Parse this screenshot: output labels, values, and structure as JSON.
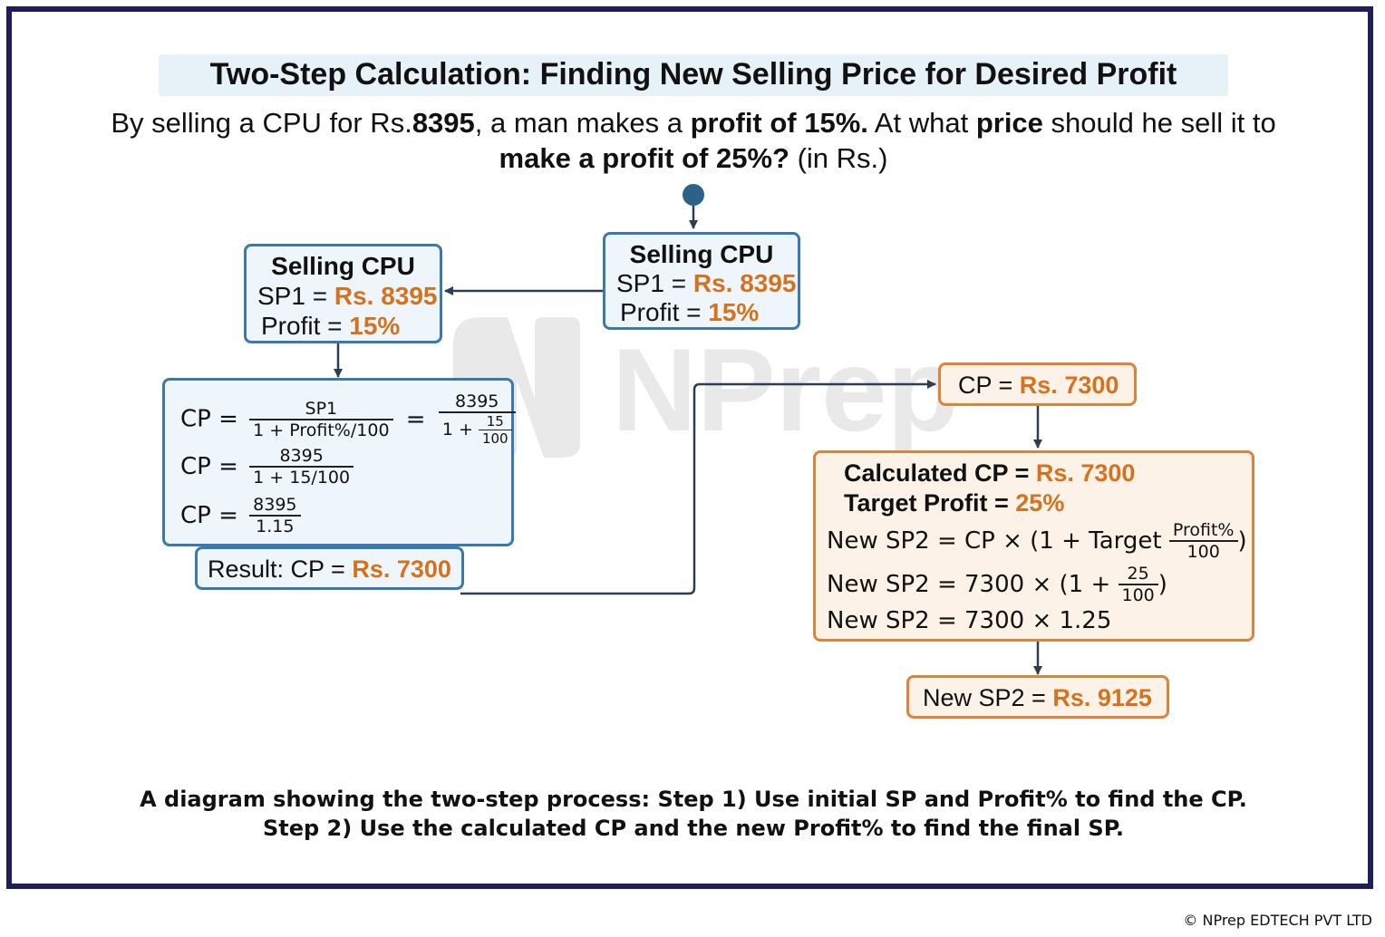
{
  "title": "Two-Step Calculation: Finding New Selling Price for Desired Profit",
  "question": {
    "p1": "By selling a CPU for Rs.",
    "b1": "8395",
    "p2": ", a man makes a ",
    "b2": "profit of 15%.",
    "p3": " At what ",
    "b3": "price",
    "p4": " should he sell it to ",
    "b4": "make a profit of 25%?",
    "p5": " (in Rs.)"
  },
  "start_box": {
    "title": "Selling CPU",
    "sp_label": "SP1 = ",
    "sp_value": "Rs. 8395",
    "profit_label": "Profit = ",
    "profit_value": "15%"
  },
  "left_box": {
    "title": "Selling CPU",
    "sp_label": "SP1 = ",
    "sp_value": "Rs. 8395",
    "profit_label": "Profit = ",
    "profit_value": "15%"
  },
  "calc_box": {
    "cp": "CP =",
    "f1_num": "SP1",
    "f1_den": "1 + Profit%",
    "f1_den_b": "100",
    "eq": "=",
    "f2_num": "8395",
    "f2_den_a": "1 +",
    "f2_small_num": "15",
    "f2_small_den": "100",
    "f3_num": "8395",
    "f3_den": "1 + 15/100",
    "f4_num": "8395",
    "f4_den": "1.15"
  },
  "result_box": {
    "label": "Result: CP = ",
    "value": "Rs. 7300"
  },
  "cp_box": {
    "label": "CP = ",
    "value": "Rs. 7300"
  },
  "step2_box": {
    "calc_cp_label": "Calculated CP = ",
    "calc_cp_value": "Rs. 7300",
    "target_label": "Target Profit = ",
    "target_value": "25%",
    "l1_a": "New SP2 = CP × (1 + Target",
    "l1_num": "Profit%",
    "l1_den": "100",
    "l1_close": ")",
    "l2_a": "New SP2 = 7300 × (1 +",
    "l2_num": "25",
    "l2_den": "100",
    "l2_close": ")",
    "l3": "New SP2 = 7300 × 1.25"
  },
  "final_box": {
    "label": "New SP2 = ",
    "value": "Rs. 9125"
  },
  "watermark": "NPrep",
  "caption": "A diagram showing the two-step process: Step 1) Use initial SP and Profit% to find the CP. Step 2) Use the calculated CP and the new Profit% to find the final SP.",
  "copyright": "© NPrep EDTECH PVT LTD",
  "colors": {
    "frame": "#1c1f5c",
    "blue": "#3b78b0",
    "orange": "#e0823a",
    "accent": "#d4731f",
    "arrow": "#2d3e50"
  }
}
